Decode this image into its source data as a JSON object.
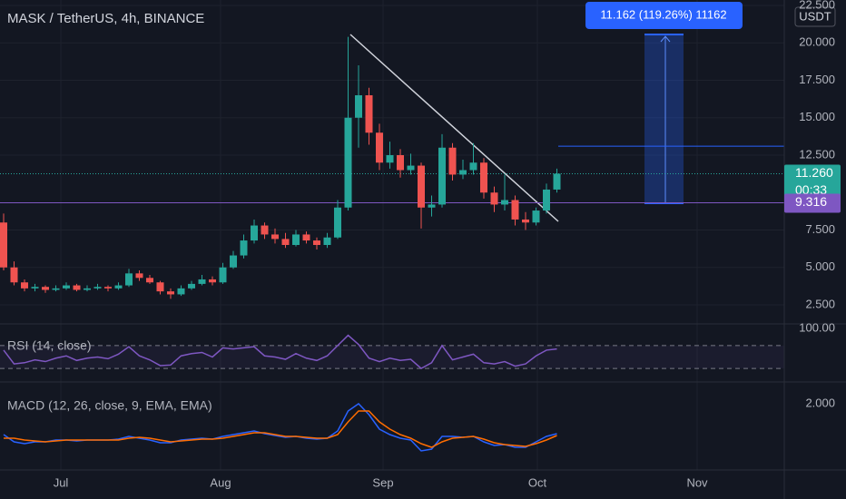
{
  "chart_data": {
    "type": "candlestick",
    "title": "MASK / TetherUS, 4h, BINANCE",
    "currency": "USDT",
    "x_labels": [
      "Jul",
      "Aug",
      "Sep",
      "Oct",
      "Nov"
    ],
    "ylim": [
      2.5,
      22.5
    ],
    "yticks": [
      {
        "value": 2.5,
        "label": "2.500"
      },
      {
        "value": 5,
        "label": "5.000"
      },
      {
        "value": 7.5,
        "label": "7.500"
      },
      {
        "value": 12.5,
        "label": "12.500"
      },
      {
        "value": 15,
        "label": "15.000"
      },
      {
        "value": 17.5,
        "label": "17.500"
      },
      {
        "value": 20,
        "label": "20.000"
      },
      {
        "value": 22.5,
        "label": "22.500"
      }
    ],
    "candles": [
      [
        8.0,
        8.6,
        4.8,
        5.0
      ],
      [
        5.0,
        5.4,
        3.8,
        4.0
      ],
      [
        4.0,
        4.2,
        3.4,
        3.6
      ],
      [
        3.6,
        3.9,
        3.4,
        3.7
      ],
      [
        3.7,
        3.8,
        3.3,
        3.5
      ],
      [
        3.5,
        3.8,
        3.4,
        3.6
      ],
      [
        3.6,
        4.0,
        3.5,
        3.8
      ],
      [
        3.8,
        3.9,
        3.4,
        3.5
      ],
      [
        3.5,
        3.8,
        3.4,
        3.6
      ],
      [
        3.6,
        3.9,
        3.5,
        3.7
      ],
      [
        3.7,
        3.8,
        3.4,
        3.6
      ],
      [
        3.6,
        4.0,
        3.5,
        3.8
      ],
      [
        3.8,
        4.9,
        3.7,
        4.6
      ],
      [
        4.6,
        4.8,
        4.1,
        4.3
      ],
      [
        4.3,
        4.5,
        3.9,
        4.0
      ],
      [
        4.0,
        4.1,
        3.2,
        3.4
      ],
      [
        3.4,
        3.6,
        2.9,
        3.2
      ],
      [
        3.2,
        3.8,
        3.1,
        3.6
      ],
      [
        3.6,
        4.1,
        3.5,
        3.9
      ],
      [
        3.9,
        4.5,
        3.8,
        4.2
      ],
      [
        4.2,
        4.4,
        3.8,
        4.0
      ],
      [
        4.0,
        5.3,
        3.9,
        5.0
      ],
      [
        5.0,
        6.1,
        4.9,
        5.8
      ],
      [
        5.8,
        7.2,
        5.6,
        6.8
      ],
      [
        6.8,
        8.2,
        6.6,
        7.8
      ],
      [
        7.8,
        8.0,
        6.9,
        7.2
      ],
      [
        7.2,
        7.6,
        6.6,
        6.9
      ],
      [
        6.9,
        7.3,
        6.3,
        6.5
      ],
      [
        6.5,
        7.5,
        6.4,
        7.2
      ],
      [
        7.2,
        7.4,
        6.6,
        6.8
      ],
      [
        6.8,
        7.0,
        6.2,
        6.5
      ],
      [
        6.5,
        7.3,
        6.3,
        7.0
      ],
      [
        7.0,
        9.5,
        6.9,
        9.0
      ],
      [
        9.0,
        20.4,
        8.8,
        15.0
      ],
      [
        15.0,
        18.5,
        13.0,
        16.5
      ],
      [
        16.5,
        17.0,
        13.2,
        14.0
      ],
      [
        14.0,
        14.6,
        11.5,
        12.0
      ],
      [
        12.0,
        13.4,
        11.6,
        12.5
      ],
      [
        12.5,
        12.9,
        11.0,
        11.5
      ],
      [
        11.5,
        12.6,
        11.2,
        11.8
      ],
      [
        11.8,
        12.0,
        7.6,
        9.0
      ],
      [
        9.0,
        9.8,
        8.4,
        9.2
      ],
      [
        9.2,
        13.9,
        9.0,
        13.0
      ],
      [
        13.0,
        13.3,
        10.8,
        11.2
      ],
      [
        11.2,
        12.2,
        10.9,
        11.5
      ],
      [
        11.5,
        13.3,
        11.2,
        12.0
      ],
      [
        12.0,
        12.3,
        9.6,
        10.0
      ],
      [
        10.0,
        10.4,
        8.7,
        9.2
      ],
      [
        9.2,
        11.2,
        8.8,
        9.5
      ],
      [
        9.5,
        9.8,
        7.8,
        8.2
      ],
      [
        8.2,
        8.7,
        7.5,
        8.0
      ],
      [
        8.0,
        9.0,
        7.8,
        8.8
      ],
      [
        8.8,
        10.6,
        8.6,
        10.2
      ],
      [
        10.2,
        11.6,
        10.0,
        11.26
      ]
    ],
    "up_color": "#26a69a",
    "down_color": "#ef5350",
    "last_price": {
      "value": 11.26,
      "label": "11.260"
    },
    "countdown": "00:33",
    "level": {
      "value": 9.316,
      "label": "9.316",
      "color": "#7e57c2"
    },
    "target_line": {
      "value": 13.1,
      "color": "#2962ff"
    },
    "measure_label": "11.162 (119.26%) 11162",
    "rsi": {
      "title": "RSI (14, close)",
      "color": "#7e57c2",
      "ylim": [
        0,
        100
      ],
      "yticks": [
        {
          "value": 100,
          "label": "100.00"
        }
      ],
      "bands": [
        70,
        30
      ],
      "values": [
        62,
        38,
        40,
        45,
        42,
        48,
        52,
        44,
        48,
        50,
        47,
        55,
        68,
        52,
        45,
        35,
        36,
        52,
        56,
        58,
        50,
        66,
        64,
        66,
        68,
        52,
        50,
        46,
        56,
        48,
        44,
        52,
        70,
        88,
        72,
        48,
        42,
        48,
        44,
        46,
        30,
        40,
        70,
        45,
        50,
        55,
        40,
        38,
        42,
        34,
        38,
        52,
        62,
        64
      ]
    },
    "macd": {
      "title": "MACD (12, 26, close, 9, EMA, EMA)",
      "ylim": [
        -1.5,
        2.5
      ],
      "yticks": [
        {
          "value": 2,
          "label": "2.000"
        }
      ],
      "series": [
        {
          "color": "#2962ff",
          "values": [
            0.3,
            -0.1,
            -0.2,
            -0.1,
            -0.1,
            0,
            0,
            -0.05,
            0,
            0,
            0,
            0.05,
            0.2,
            0.1,
            0,
            -0.15,
            -0.15,
            0,
            0.05,
            0.1,
            0.05,
            0.2,
            0.3,
            0.4,
            0.5,
            0.35,
            0.25,
            0.15,
            0.2,
            0.1,
            0.05,
            0.1,
            0.5,
            1.6,
            2.0,
            1.4,
            0.6,
            0.3,
            0.1,
            0,
            -0.6,
            -0.5,
            0.2,
            0.2,
            0.15,
            0.2,
            -0.1,
            -0.3,
            -0.25,
            -0.4,
            -0.4,
            -0.1,
            0.2,
            0.35
          ]
        },
        {
          "color": "#ff6d00",
          "values": [
            0.1,
            0.1,
            0,
            -0.05,
            -0.1,
            -0.05,
            0,
            0,
            0,
            0,
            0,
            0,
            0.1,
            0.15,
            0.1,
            0,
            -0.1,
            -0.05,
            0,
            0.05,
            0.05,
            0.1,
            0.2,
            0.3,
            0.4,
            0.4,
            0.3,
            0.2,
            0.2,
            0.15,
            0.1,
            0.1,
            0.3,
            1.0,
            1.6,
            1.6,
            1.0,
            0.6,
            0.3,
            0.1,
            -0.2,
            -0.4,
            -0.1,
            0.1,
            0.15,
            0.2,
            0.05,
            -0.15,
            -0.25,
            -0.3,
            -0.35,
            -0.2,
            0,
            0.25
          ]
        }
      ]
    }
  }
}
